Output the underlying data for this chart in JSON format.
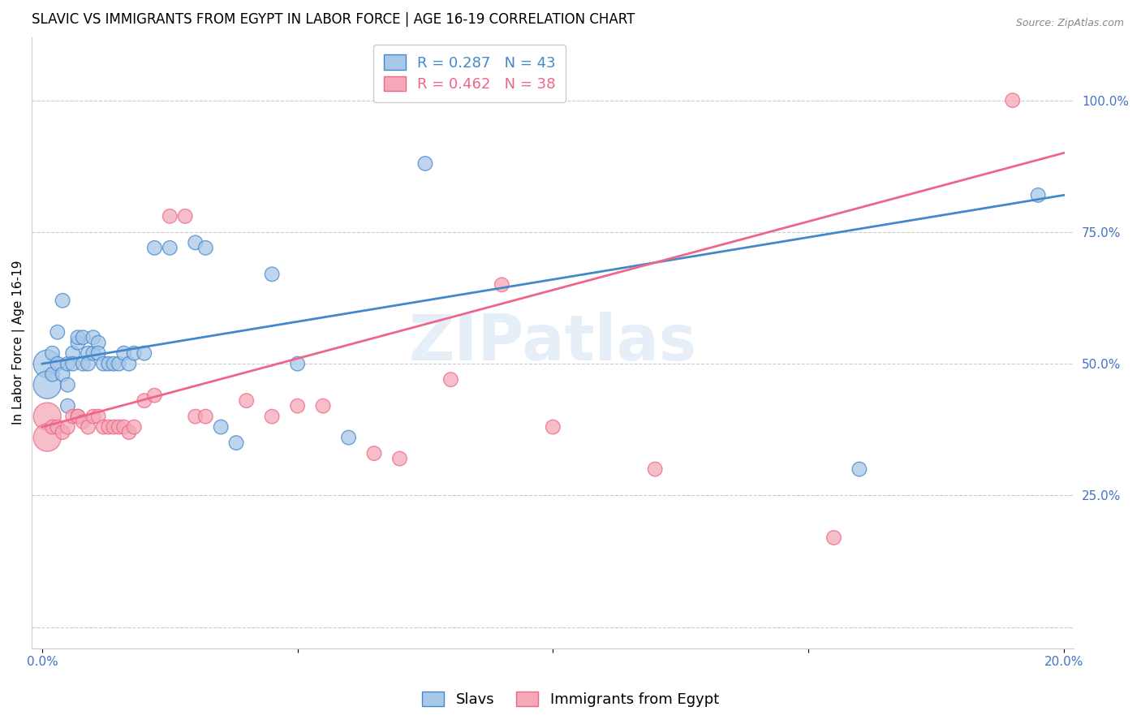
{
  "title": "SLAVIC VS IMMIGRANTS FROM EGYPT IN LABOR FORCE | AGE 16-19 CORRELATION CHART",
  "source": "Source: ZipAtlas.com",
  "ylabel": "In Labor Force | Age 16-19",
  "xlim": [
    -0.002,
    0.202
  ],
  "ylim": [
    -0.04,
    1.12
  ],
  "xticks": [
    0.0,
    0.05,
    0.1,
    0.15,
    0.2
  ],
  "xticklabels": [
    "0.0%",
    "",
    "",
    "",
    "20.0%"
  ],
  "yticks_right": [
    0.25,
    0.5,
    0.75,
    1.0
  ],
  "ytick_right_labels": [
    "25.0%",
    "50.0%",
    "75.0%",
    "100.0%"
  ],
  "blue_R": 0.287,
  "blue_N": 43,
  "pink_R": 0.462,
  "pink_N": 38,
  "blue_color": "#A8C8E8",
  "pink_color": "#F4A8B8",
  "blue_line_color": "#4488CC",
  "pink_line_color": "#EE6688",
  "legend_blue_label": "Slavs",
  "legend_pink_label": "Immigrants from Egypt",
  "watermark": "ZIPatlas",
  "blue_x": [
    0.001,
    0.001,
    0.002,
    0.002,
    0.003,
    0.003,
    0.004,
    0.004,
    0.005,
    0.005,
    0.005,
    0.006,
    0.006,
    0.007,
    0.007,
    0.008,
    0.008,
    0.009,
    0.009,
    0.01,
    0.01,
    0.011,
    0.011,
    0.012,
    0.013,
    0.014,
    0.015,
    0.016,
    0.017,
    0.018,
    0.02,
    0.022,
    0.025,
    0.03,
    0.032,
    0.035,
    0.038,
    0.045,
    0.05,
    0.06,
    0.075,
    0.16,
    0.195
  ],
  "blue_y": [
    0.5,
    0.46,
    0.52,
    0.48,
    0.56,
    0.5,
    0.62,
    0.48,
    0.5,
    0.46,
    0.42,
    0.52,
    0.5,
    0.54,
    0.55,
    0.5,
    0.55,
    0.52,
    0.5,
    0.52,
    0.55,
    0.54,
    0.52,
    0.5,
    0.5,
    0.5,
    0.5,
    0.52,
    0.5,
    0.52,
    0.52,
    0.72,
    0.72,
    0.73,
    0.72,
    0.38,
    0.35,
    0.67,
    0.5,
    0.36,
    0.88,
    0.3,
    0.82
  ],
  "pink_x": [
    0.001,
    0.001,
    0.002,
    0.003,
    0.004,
    0.005,
    0.006,
    0.007,
    0.007,
    0.008,
    0.009,
    0.01,
    0.011,
    0.012,
    0.013,
    0.014,
    0.015,
    0.016,
    0.017,
    0.018,
    0.02,
    0.022,
    0.025,
    0.028,
    0.03,
    0.032,
    0.04,
    0.045,
    0.05,
    0.055,
    0.065,
    0.07,
    0.08,
    0.09,
    0.1,
    0.12,
    0.155,
    0.19
  ],
  "pink_y": [
    0.4,
    0.36,
    0.38,
    0.38,
    0.37,
    0.38,
    0.4,
    0.4,
    0.4,
    0.39,
    0.38,
    0.4,
    0.4,
    0.38,
    0.38,
    0.38,
    0.38,
    0.38,
    0.37,
    0.38,
    0.43,
    0.44,
    0.78,
    0.78,
    0.4,
    0.4,
    0.43,
    0.4,
    0.42,
    0.42,
    0.33,
    0.32,
    0.47,
    0.65,
    0.38,
    0.3,
    0.17,
    1.0
  ],
  "title_fontsize": 12,
  "axis_label_fontsize": 11,
  "tick_fontsize": 11,
  "legend_fontsize": 13,
  "background_color": "#FFFFFF",
  "grid_color": "#CCCCCC"
}
